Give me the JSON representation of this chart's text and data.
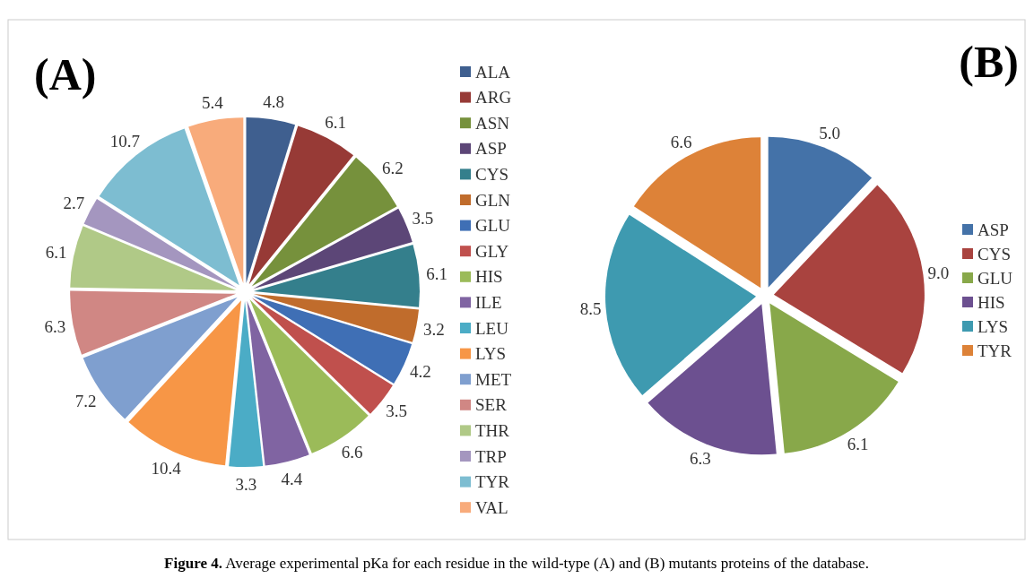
{
  "chart_data": [
    {
      "type": "pie",
      "title": "(A)",
      "legend": "right",
      "categories": [
        "ALA",
        "ARG",
        "ASN",
        "ASP",
        "CYS",
        "GLN",
        "GLU",
        "GLY",
        "HIS",
        "ILE",
        "LEU",
        "LYS",
        "MET",
        "SER",
        "THR",
        "TRP",
        "TYR",
        "VAL"
      ],
      "values": [
        4.8,
        6.1,
        6.2,
        3.5,
        6.1,
        3.2,
        4.2,
        3.5,
        6.6,
        4.4,
        3.3,
        10.4,
        7.2,
        6.3,
        6.1,
        2.7,
        10.7,
        5.4
      ],
      "value_labels": [
        "4.8",
        "6.1",
        "6.2",
        "3.5",
        "6.1",
        "3.2",
        "4.2",
        "3.5",
        "6.6",
        "4.4",
        "3.3",
        "10.4",
        "7.2",
        "6.3",
        "6.1",
        "2.7",
        "10.7",
        "5.4"
      ],
      "colors": [
        "#3f5f8f",
        "#973a36",
        "#76913c",
        "#5c4677",
        "#347f8c",
        "#c06c2c",
        "#3f6fb5",
        "#c0504d",
        "#9bbb59",
        "#8064a2",
        "#4bacc6",
        "#f79646",
        "#7f9fcf",
        "#d08784",
        "#b0c987",
        "#a496bf",
        "#7dbdd1",
        "#f8ab7b"
      ],
      "annotations": [
        "Figure 4. Average experimental pKa for each residue in the wild-type (A) and (B) mutants proteins of the database."
      ]
    },
    {
      "type": "pie",
      "title": "(B)",
      "legend": "right",
      "categories": [
        "ASP",
        "CYS",
        "GLU",
        "HIS",
        "LYS",
        "TYR"
      ],
      "values": [
        5.0,
        9.0,
        6.1,
        6.3,
        8.5,
        6.6
      ],
      "value_labels": [
        "5.0",
        "9.0",
        "6.1",
        "6.3",
        "8.5",
        "6.6"
      ],
      "colors": [
        "#4472a8",
        "#a9433f",
        "#88a84a",
        "#6c5090",
        "#3e9ab0",
        "#dd8238"
      ]
    }
  ]
}
